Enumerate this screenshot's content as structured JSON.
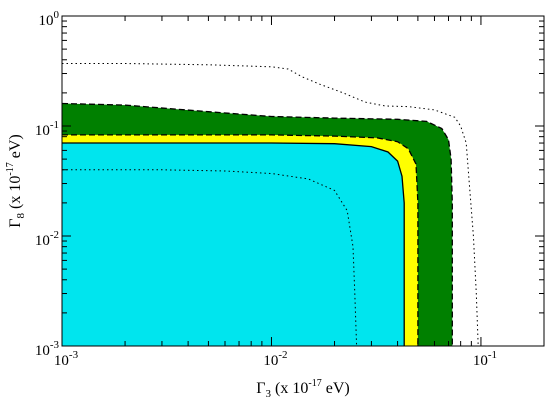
{
  "chart_data": {
    "type": "area",
    "xscale": "log",
    "yscale": "log",
    "xlim": [
      0.001,
      0.2
    ],
    "ylim": [
      0.001,
      1
    ],
    "grid": false,
    "xlabel": {
      "symbol": "Γ",
      "subscript": "3",
      "unit_prefix": " (x 10",
      "unit_exp": "-17",
      "unit_suffix": " eV)"
    },
    "ylabel": {
      "symbol": "Γ",
      "subscript": "8",
      "unit_prefix": " (x 10",
      "unit_exp": "-17",
      "unit_suffix": " eV)"
    },
    "x_ticks": [
      {
        "value": 0.001,
        "base": "10",
        "exp": "-3"
      },
      {
        "value": 0.01,
        "base": "10",
        "exp": "-2"
      },
      {
        "value": 0.1,
        "base": "10",
        "exp": "-1"
      }
    ],
    "y_ticks": [
      {
        "value": 0.001,
        "base": "10",
        "exp": "-3"
      },
      {
        "value": 0.01,
        "base": "10",
        "exp": "-2"
      },
      {
        "value": 0.1,
        "base": "10",
        "exp": "-1"
      },
      {
        "value": 1,
        "base": "10",
        "exp": "0"
      }
    ],
    "colors": {
      "cyan": "#00e5ee",
      "yellow": "#ffff00",
      "green": "#008000",
      "line": "#000000"
    },
    "regions": [
      {
        "fill": "green",
        "boundary_style": "dashed",
        "boundary": [
          [
            0.001,
            0.16
          ],
          [
            0.002,
            0.155
          ],
          [
            0.005,
            0.135
          ],
          [
            0.01,
            0.122
          ],
          [
            0.02,
            0.118
          ],
          [
            0.04,
            0.115
          ],
          [
            0.055,
            0.11
          ],
          [
            0.065,
            0.095
          ],
          [
            0.07,
            0.075
          ],
          [
            0.072,
            0.05
          ],
          [
            0.073,
            0.02
          ],
          [
            0.073,
            0.001
          ]
        ]
      },
      {
        "fill": "yellow",
        "boundary_style": "dashed",
        "boundary": [
          [
            0.001,
            0.083
          ],
          [
            0.005,
            0.083
          ],
          [
            0.01,
            0.083
          ],
          [
            0.02,
            0.081
          ],
          [
            0.032,
            0.078
          ],
          [
            0.04,
            0.072
          ],
          [
            0.045,
            0.062
          ],
          [
            0.049,
            0.045
          ],
          [
            0.05,
            0.02
          ],
          [
            0.05,
            0.001
          ]
        ]
      },
      {
        "fill": "cyan",
        "boundary_style": "solid",
        "boundary": [
          [
            0.001,
            0.07
          ],
          [
            0.005,
            0.07
          ],
          [
            0.01,
            0.07
          ],
          [
            0.02,
            0.069
          ],
          [
            0.03,
            0.065
          ],
          [
            0.036,
            0.058
          ],
          [
            0.04,
            0.048
          ],
          [
            0.042,
            0.035
          ],
          [
            0.043,
            0.02
          ],
          [
            0.043,
            0.001
          ]
        ]
      }
    ],
    "dotted_contours": [
      {
        "name": "outer",
        "points": [
          [
            0.001,
            0.37
          ],
          [
            0.002,
            0.37
          ],
          [
            0.005,
            0.36
          ],
          [
            0.01,
            0.345
          ],
          [
            0.012,
            0.33
          ],
          [
            0.014,
            0.28
          ],
          [
            0.017,
            0.24
          ],
          [
            0.022,
            0.2
          ],
          [
            0.028,
            0.165
          ],
          [
            0.035,
            0.152
          ],
          [
            0.045,
            0.15
          ],
          [
            0.06,
            0.14
          ],
          [
            0.075,
            0.12
          ],
          [
            0.08,
            0.1
          ],
          [
            0.085,
            0.07
          ],
          [
            0.088,
            0.03
          ],
          [
            0.092,
            0.01
          ],
          [
            0.095,
            0.003
          ],
          [
            0.097,
            0.001
          ]
        ]
      },
      {
        "name": "inner",
        "points": [
          [
            0.001,
            0.04
          ],
          [
            0.003,
            0.04
          ],
          [
            0.006,
            0.039
          ],
          [
            0.01,
            0.037
          ],
          [
            0.015,
            0.033
          ],
          [
            0.02,
            0.026
          ],
          [
            0.023,
            0.017
          ],
          [
            0.0245,
            0.008
          ],
          [
            0.025,
            0.003
          ],
          [
            0.0255,
            0.001
          ]
        ]
      }
    ]
  }
}
